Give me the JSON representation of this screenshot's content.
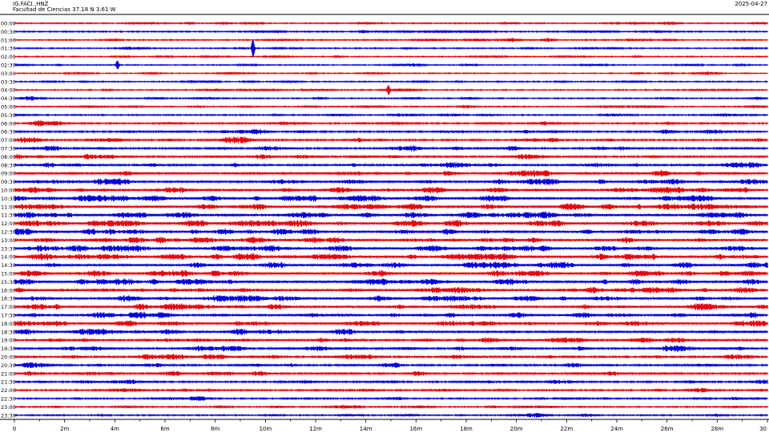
{
  "header": {
    "station": "IG.FACI..HNZ",
    "location": "Facultad de Ciencias  37.18 N 3.61 W",
    "date": "2025-04-27"
  },
  "chart_data": {
    "type": "line",
    "title": "IG.FACI..HNZ",
    "subtitle": "Facultad de Ciencias  37.18 N 3.61 W",
    "row_labels": [
      "00:00",
      "00:30",
      "01:00",
      "01:30",
      "02:00",
      "02:30",
      "03:00",
      "03:30",
      "04:00",
      "04:30",
      "05:00",
      "05:30",
      "06:00",
      "06:30",
      "07:00",
      "07:30",
      "08:00",
      "08:30",
      "09:00",
      "09:30",
      "10:00",
      "10:30",
      "11:00",
      "11:30",
      "12:00",
      "12:30",
      "13:00",
      "13:30",
      "14:00",
      "14:30",
      "15:00",
      "15:30",
      "16:00",
      "16:30",
      "17:00",
      "17:30",
      "18:00",
      "18:30",
      "19:00",
      "19:30",
      "20:00",
      "20:30",
      "21:00",
      "21:30",
      "22:00",
      "22:30",
      "23:00",
      "23:30"
    ],
    "row_colors": [
      "#e8000b",
      "#0000e0"
    ],
    "activity": [
      0.25,
      0.28,
      0.22,
      0.2,
      0.15,
      0.15,
      0.15,
      0.18,
      0.2,
      0.22,
      0.25,
      0.3,
      0.4,
      0.45,
      0.5,
      0.55,
      0.6,
      0.65,
      0.7,
      0.75,
      0.9,
      0.95,
      1.0,
      0.95,
      1.0,
      0.9,
      0.85,
      0.95,
      1.0,
      0.9,
      0.95,
      1.0,
      0.85,
      0.8,
      0.8,
      0.75,
      0.8,
      0.75,
      0.7,
      0.65,
      0.6,
      0.55,
      0.55,
      0.45,
      0.4,
      0.35,
      0.3,
      0.28
    ],
    "events": [
      {
        "row": 3,
        "minute": 9.5,
        "amplitude": 0.9
      },
      {
        "row": 5,
        "minute": 4.1,
        "amplitude": 0.45
      },
      {
        "row": 8,
        "minute": 14.9,
        "amplitude": 0.5
      }
    ],
    "x_ticks": [
      "0",
      "2m",
      "4m",
      "6m",
      "8m",
      "10m",
      "12m",
      "14m",
      "16m",
      "18m",
      "20m",
      "22m",
      "24m",
      "26m",
      "28m",
      "30"
    ],
    "xlim": [
      0,
      30
    ],
    "grid": false
  }
}
